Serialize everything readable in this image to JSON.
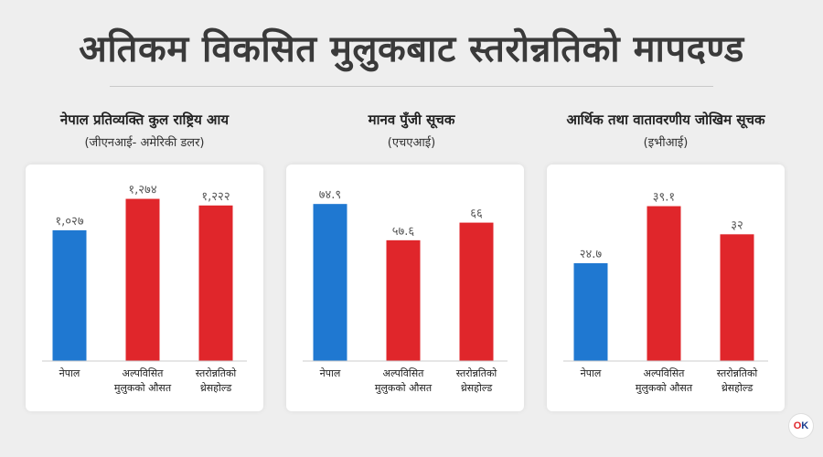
{
  "page": {
    "title": "अतिकम विकसित मुलुकबाट स्तरोन्नतिको मापदण्ड"
  },
  "logo": {
    "text_a": "O",
    "text_b": "K"
  },
  "colors": {
    "nepal": "#1f78d1",
    "other": "#e0262b"
  },
  "chart_data": [
    {
      "type": "bar",
      "title": "नेपाल प्रतिव्यक्ति कुल राष्ट्रिय आय",
      "subtitle": "(जीएनआई- अमेरिकी डलर)",
      "categories": [
        "नेपाल",
        "अल्पविसित मुलुकको औसत",
        "स्तरोन्नतिको थ्रेसहोल्ड"
      ],
      "category_lines": [
        [
          "नेपाल"
        ],
        [
          "अल्पविसित",
          "मुलुकको औसत"
        ],
        [
          "स्तरोन्नतिको",
          "थ्रेसहोल्ड"
        ]
      ],
      "values": [
        1027,
        1274,
        1222
      ],
      "value_labels": [
        "१,०२७",
        "१,२७४",
        "१,२२२"
      ],
      "ylim": [
        0,
        1400
      ],
      "grid": false
    },
    {
      "type": "bar",
      "title": "मानव पुँजी सूचक",
      "subtitle": "(एचएआई)",
      "categories": [
        "नेपाल",
        "अल्पविसित मुलुकको औसत",
        "स्तरोन्नतिको थ्रेसहोल्ड"
      ],
      "category_lines": [
        [
          "नेपाल"
        ],
        [
          "अल्पविसित",
          "मुलुकको औसत"
        ],
        [
          "स्तरोन्नतिको",
          "थ्रेसहोल्ड"
        ]
      ],
      "values": [
        74.9,
        57.6,
        66
      ],
      "value_labels": [
        "७४.९",
        "५७.६",
        "६६"
      ],
      "ylim": [
        0,
        85
      ],
      "grid": false
    },
    {
      "type": "bar",
      "title": "आर्थिक तथा वातावरणीय जोखिम सूचक",
      "subtitle": "(इभीआई)",
      "categories": [
        "नेपाल",
        "अल्पविसित मुलुकको औसत",
        "स्तरोन्नतिको थ्रेसहोल्ड"
      ],
      "category_lines": [
        [
          "नेपाल"
        ],
        [
          "अल्पविसित",
          "मुलुकको औसत"
        ],
        [
          "स्तरोन्नतिको",
          "थ्रेसहोल्ड"
        ]
      ],
      "values": [
        24.7,
        39.1,
        32
      ],
      "value_labels": [
        "२४.७",
        "३९.१",
        "३२"
      ],
      "ylim": [
        0,
        45
      ],
      "grid": false
    }
  ]
}
